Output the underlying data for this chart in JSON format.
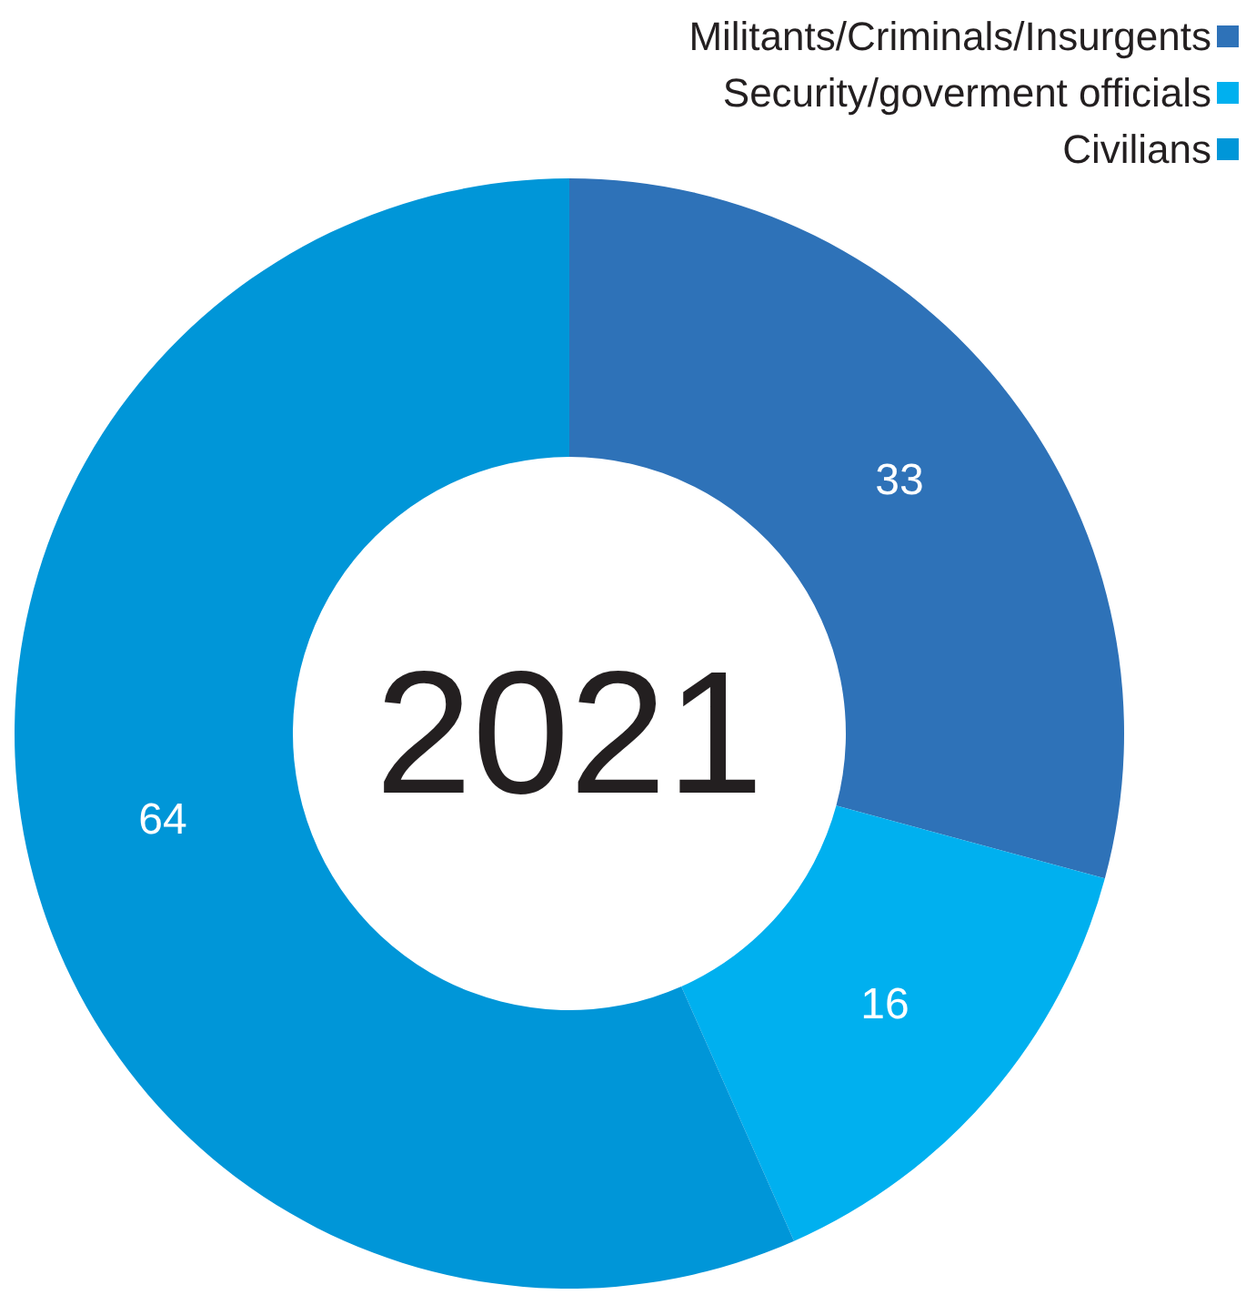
{
  "chart_data": {
    "type": "donut",
    "title": "2021",
    "categories": [
      "Militants/Criminals/Insurgents",
      "Security/goverment officials",
      "Civilians"
    ],
    "values": [
      33,
      16,
      64
    ],
    "colors": [
      "#2e72b8",
      "#00b0ef",
      "#0096d8"
    ],
    "data_labels": true,
    "legend": "top right"
  }
}
